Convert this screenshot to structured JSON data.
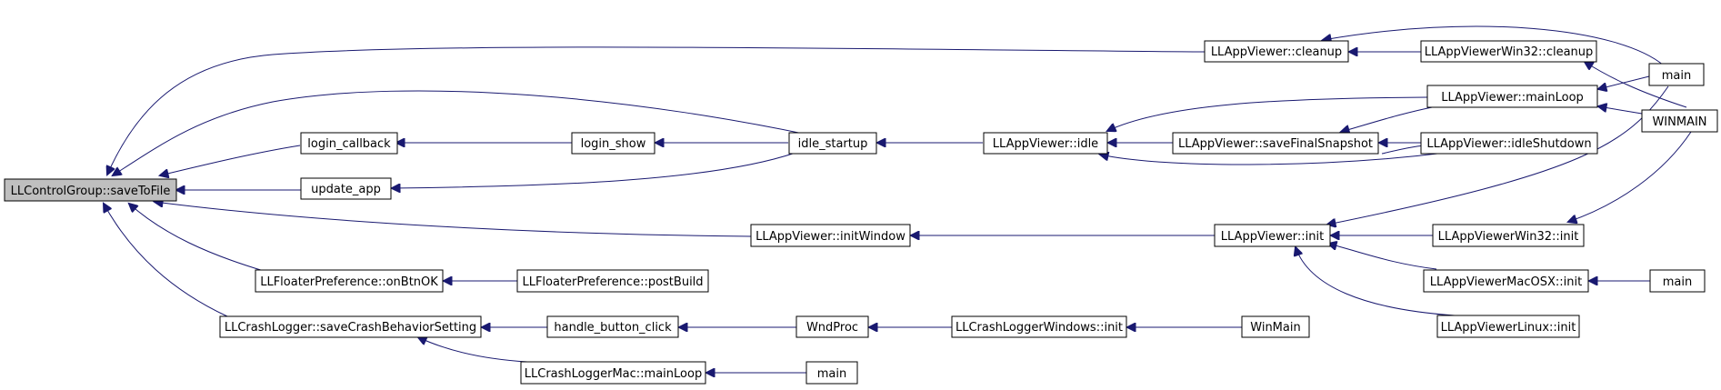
{
  "graph": {
    "nodes": {
      "root": "LLControlGroup::saveToFile",
      "login_callback": "login_callback",
      "update_app": "update_app",
      "login_show": "login_show",
      "idle_startup": "idle_startup",
      "viewer_idle": "LLAppViewer::idle",
      "viewer_cleanup": "LLAppViewer::cleanup",
      "win32_cleanup": "LLAppViewerWin32::cleanup",
      "main_1": "main",
      "winmain_upper": "WINMAIN",
      "viewer_mainloop": "LLAppViewer::mainLoop",
      "save_final_snapshot": "LLAppViewer::saveFinalSnapshot",
      "idle_shutdown": "LLAppViewer::idleShutdown",
      "init_window": "LLAppViewer::initWindow",
      "viewer_init": "LLAppViewer::init",
      "win32_init": "LLAppViewerWin32::init",
      "macosx_init": "LLAppViewerMacOSX::init",
      "main_2": "main",
      "linux_init": "LLAppViewerLinux::init",
      "floater_onbtnok": "LLFloaterPreference::onBtnOK",
      "floater_postbuild": "LLFloaterPreference::postBuild",
      "crashlogger_save": "LLCrashLogger::saveCrashBehaviorSetting",
      "handle_button_click": "handle_button_click",
      "wndproc": "WndProc",
      "crashlogger_windows_init": "LLCrashLoggerWindows::init",
      "winmain_lower": "WinMain",
      "crashlogger_mac_mainloop": "LLCrashLoggerMac::mainLoop",
      "main_3": "main"
    },
    "edge_color": "#191970",
    "root_fill": "#bfbfbf",
    "node_fill": "#ffffff"
  }
}
